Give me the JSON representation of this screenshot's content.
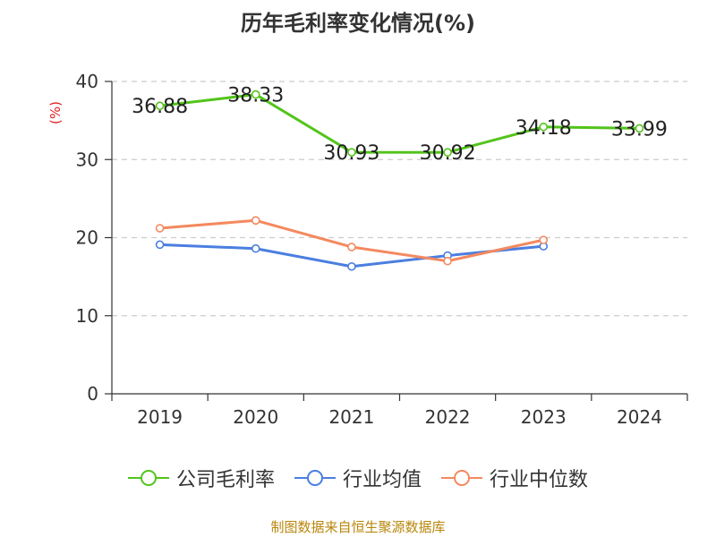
{
  "colors": {
    "series": [
      "#52c41a",
      "#4a7ee0",
      "#f4895f"
    ],
    "grid": "#cccccc",
    "axis": "#333333",
    "unit": "#e02020",
    "source": "#b8860b"
  },
  "chart_data": {
    "type": "line",
    "title": "历年毛利率变化情况(%)",
    "ylabel": "(%)",
    "xlabel": "",
    "categories": [
      "2019",
      "2020",
      "2021",
      "2022",
      "2023",
      "2024"
    ],
    "ylim": [
      0,
      40
    ],
    "yticks": [
      0,
      10,
      20,
      30,
      40
    ],
    "grid": true,
    "legend_position": "bottom",
    "series": [
      {
        "name": "公司毛利率",
        "values": [
          36.88,
          38.33,
          30.93,
          30.92,
          34.18,
          33.99
        ],
        "labels": [
          "36.88",
          "38.33",
          "30.93",
          "30.92",
          "34.18",
          "33.99"
        ]
      },
      {
        "name": "行业均值",
        "values": [
          19.1,
          18.6,
          16.3,
          17.7,
          18.9,
          null
        ]
      },
      {
        "name": "行业中位数",
        "values": [
          21.2,
          22.2,
          18.8,
          17.0,
          19.7,
          null
        ]
      }
    ]
  },
  "source_text": "制图数据来自恒生聚源数据库"
}
